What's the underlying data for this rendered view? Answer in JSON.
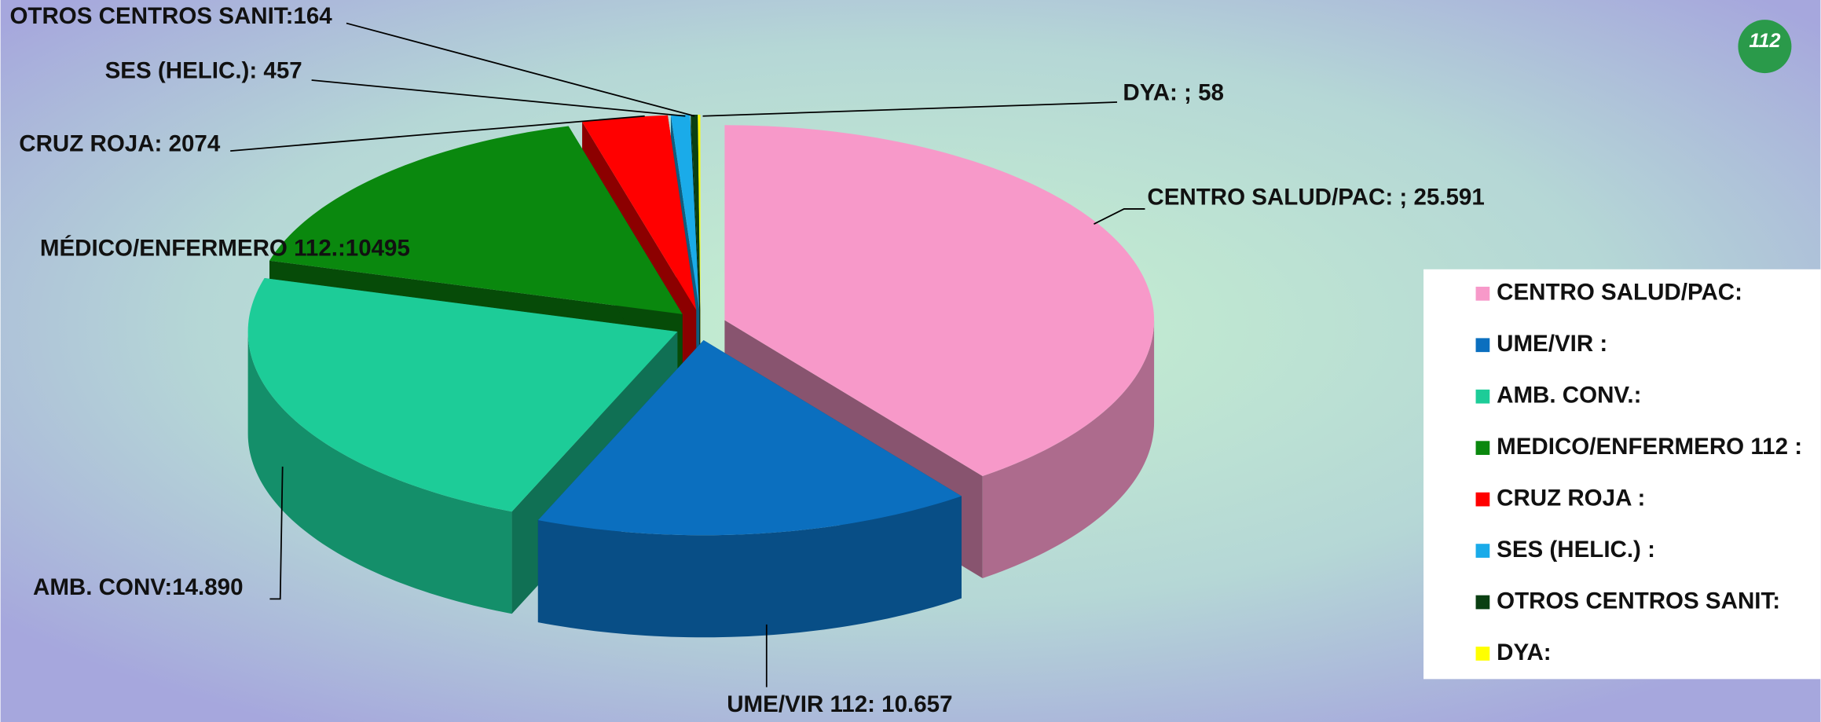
{
  "chart_data": {
    "type": "pie",
    "categories": [
      "CENTRO SALUD/PAC:",
      "UME/VIR :",
      "AMB. CONV.:",
      "MEDICO/ENFERMERO 112 :",
      "CRUZ ROJA :",
      "SES (HELIC.) :",
      "OTROS CENTROS SANIT:",
      "DYA:"
    ],
    "values": [
      25591,
      10657,
      14890,
      10495,
      2074,
      457,
      164,
      58
    ],
    "value_labels": [
      "CENTRO SALUD/PAC: ; 25.591",
      "UME/VIR 112: 10.657",
      "AMB. CONV:14.890",
      "MÉDICO/ENFERMERO 112.:10495",
      "CRUZ ROJA: 2074",
      "SES (HELIC.): 457",
      "OTROS CENTROS SANIT:164",
      "DYA: ; 58"
    ],
    "colors": [
      "#f799c9",
      "#0b6fbf",
      "#1dcc98",
      "#0a880e",
      "#ff0000",
      "#1aabe9",
      "#0a3f12",
      "#ffff00"
    ],
    "legend": "right",
    "logo_text": "112"
  }
}
